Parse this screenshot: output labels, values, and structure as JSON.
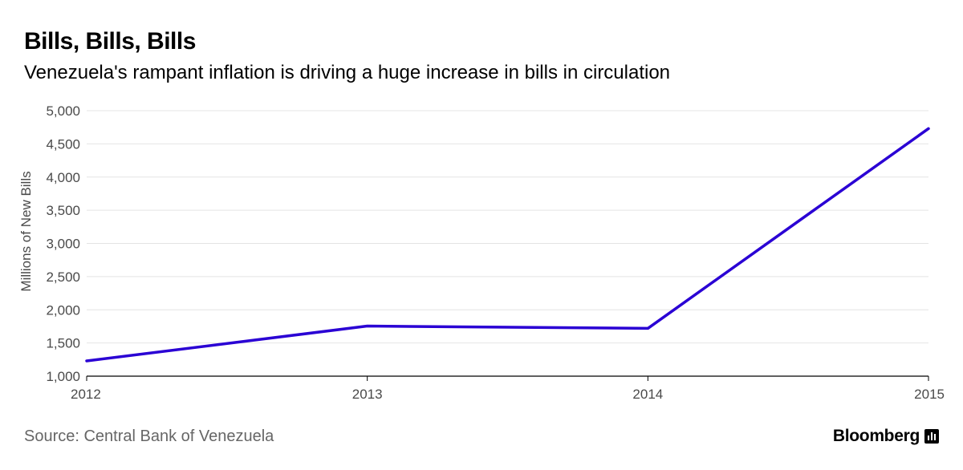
{
  "header": {
    "title": "Bills, Bills, Bills",
    "subtitle": "Venezuela's rampant inflation is driving a huge increase in bills in circulation"
  },
  "footer": {
    "source": "Source: Central Bank of Venezuela",
    "brand": "Bloomberg",
    "brand_icon": "bar-chart-icon"
  },
  "colors": {
    "line": "#2a00d4",
    "grid": "#e4e4e4",
    "axis": "#000000",
    "tick_text": "#4a4a4a"
  },
  "chart_data": {
    "type": "line",
    "title": "Bills, Bills, Bills",
    "subtitle": "Venezuela's rampant inflation is driving a huge increase in bills in circulation",
    "xlabel": "",
    "ylabel": "Millions of New Bills",
    "x": [
      2012,
      2013,
      2014,
      2015
    ],
    "x_tick_labels": [
      "2012",
      "2013",
      "2014",
      "2015"
    ],
    "series": [
      {
        "values": [
          1230,
          1755,
          1720,
          4730
        ]
      }
    ],
    "ylim": [
      1000,
      5000
    ],
    "y_ticks": [
      1000,
      1500,
      2000,
      2500,
      3000,
      3500,
      4000,
      4500,
      5000
    ],
    "y_tick_labels": [
      "1,000",
      "1,500",
      "2,000",
      "2,500",
      "3,000",
      "3,500",
      "4,000",
      "4,500",
      "5,000"
    ],
    "grid": true,
    "legend": "none"
  }
}
